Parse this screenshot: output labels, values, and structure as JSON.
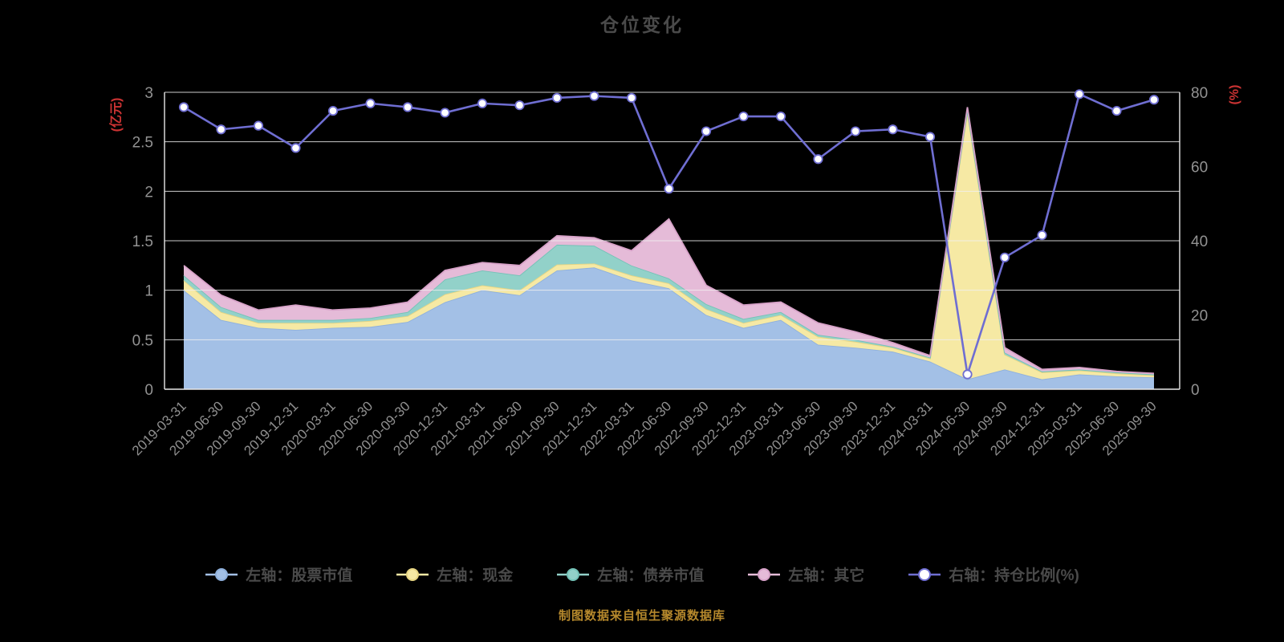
{
  "page": {
    "title": "仓位变化",
    "footer": "制图数据来自恒生聚源数据库"
  },
  "chart_data": {
    "type": "area",
    "title": "仓位变化",
    "legend_position": "bottom",
    "grid": true,
    "background": "#000000",
    "left_axis": {
      "label": "(亿元)",
      "label_color": "#cc3333",
      "min": 0,
      "max": 3,
      "ticks": [
        "0",
        "0.5",
        "1",
        "1.5",
        "2",
        "2.5",
        "3"
      ]
    },
    "right_axis": {
      "label": "(%)",
      "label_color": "#cc3333",
      "min": 0,
      "max": 80,
      "ticks": [
        "0",
        "20",
        "40",
        "60",
        "80"
      ]
    },
    "categories": [
      "2019-03-31",
      "2019-06-30",
      "2019-09-30",
      "2019-12-31",
      "2020-03-31",
      "2020-06-30",
      "2020-09-30",
      "2020-12-31",
      "2021-03-31",
      "2021-06-30",
      "2021-09-30",
      "2021-12-31",
      "2022-03-31",
      "2022-06-30",
      "2022-09-30",
      "2022-12-31",
      "2023-03-31",
      "2023-06-30",
      "2023-09-30",
      "2023-12-31",
      "2024-03-31",
      "2024-06-30",
      "2024-09-30",
      "2024-12-31",
      "2025-03-31",
      "2025-06-30",
      "2025-09-30"
    ],
    "series": [
      {
        "name": "左轴：股票市值",
        "key": "stock-value",
        "fill": "#a3c0e6",
        "stroke": "#8fb0dc",
        "values": [
          1.0,
          0.7,
          0.62,
          0.6,
          0.62,
          0.63,
          0.68,
          0.88,
          1.0,
          0.95,
          1.2,
          1.23,
          1.1,
          1.02,
          0.75,
          0.62,
          0.7,
          0.45,
          0.42,
          0.38,
          0.28,
          0.1,
          0.2,
          0.1,
          0.15,
          0.13,
          0.12
        ]
      },
      {
        "name": "左轴：现金",
        "key": "cash",
        "fill": "#f6e9a4",
        "stroke": "#e7d583",
        "values": [
          0.1,
          0.08,
          0.05,
          0.07,
          0.05,
          0.06,
          0.06,
          0.08,
          0.05,
          0.05,
          0.06,
          0.04,
          0.05,
          0.05,
          0.06,
          0.05,
          0.05,
          0.08,
          0.06,
          0.04,
          0.03,
          2.7,
          0.15,
          0.07,
          0.04,
          0.03,
          0.02
        ]
      },
      {
        "name": "左轴：债券市值",
        "key": "bond-value",
        "fill": "#92d1c9",
        "stroke": "#74c2b7",
        "values": [
          0.05,
          0.05,
          0.03,
          0.03,
          0.03,
          0.03,
          0.04,
          0.15,
          0.15,
          0.15,
          0.2,
          0.18,
          0.1,
          0.05,
          0.05,
          0.04,
          0.03,
          0.02,
          0.02,
          0.01,
          0.01,
          0.02,
          0.02,
          0.01,
          0.01,
          0.01,
          0.01
        ]
      },
      {
        "name": "左轴：其它",
        "key": "other",
        "fill": "#e5bbd8",
        "stroke": "#d7a2c8",
        "values": [
          0.1,
          0.12,
          0.1,
          0.15,
          0.1,
          0.1,
          0.1,
          0.09,
          0.08,
          0.1,
          0.09,
          0.08,
          0.15,
          0.6,
          0.19,
          0.14,
          0.1,
          0.12,
          0.08,
          0.04,
          0.02,
          0.03,
          0.05,
          0.02,
          0.02,
          0.01,
          0.01
        ]
      }
    ],
    "line_series": {
      "name": "右轴：持仓比例(%)",
      "key": "position-ratio",
      "color": "#6f6ed2",
      "marker_fill": "#ffffff",
      "values": [
        76,
        70,
        71,
        65,
        75,
        77,
        76,
        74.5,
        77,
        76.5,
        78.5,
        79,
        78.5,
        54,
        69.5,
        73.5,
        73.5,
        62,
        69.5,
        70,
        68,
        4,
        35.5,
        41.5,
        79.5,
        75,
        78
      ]
    }
  }
}
